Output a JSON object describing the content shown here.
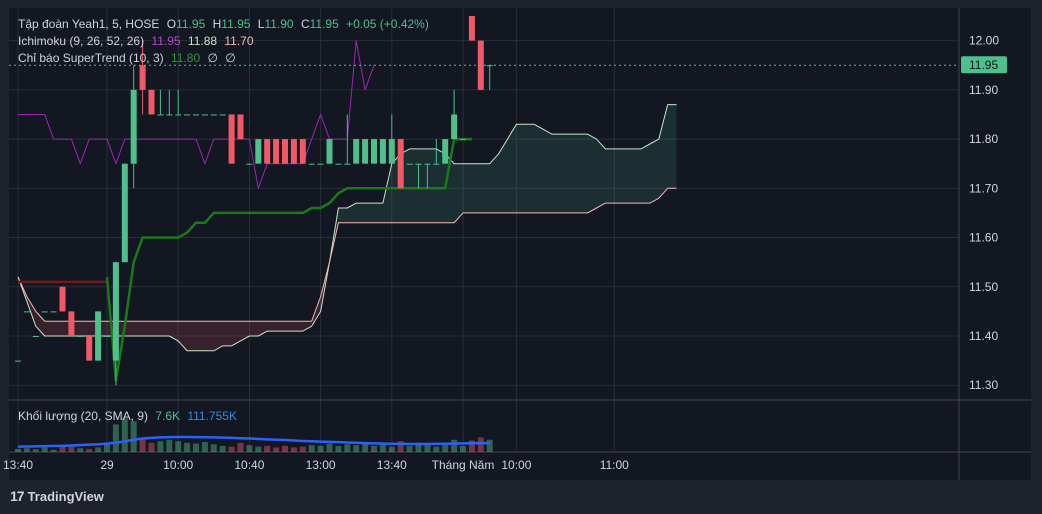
{
  "colors": {
    "up": "#4fbf8c",
    "down": "#f05a67",
    "conversion": "#9c27b0",
    "supertrend": "#1a7a1a",
    "supertrend_red": "#6d1b1b",
    "leadA": "#c7e6c7",
    "leadB": "#f4b8b8",
    "volume_ma": "#2962ff",
    "accent_price": "#4fbf8c",
    "text": "#d1d4dc",
    "axis_text": "#d1d4dc"
  },
  "legend": {
    "symbol": "Tập đoàn Yeah1, 5, HOSE",
    "o_label": "O",
    "o": "11.95",
    "h_label": "H",
    "h": "11.95",
    "l_label": "L",
    "l": "11.90",
    "c_label": "C",
    "c": "11.95",
    "change": "+0.05 (+0.42%)",
    "ichimoku_label": "Ichimoku (9, 26, 52, 26)",
    "ichimoku_v1": "11.95",
    "ichimoku_v2": "11.88",
    "ichimoku_v3": "11.70",
    "supertrend_label": "Chỉ báo SuperTrend (10, 3)",
    "supertrend_v1": "11.80",
    "supertrend_v2": "∅",
    "supertrend_v3": "∅",
    "volume_label": "Khối lượng (20, SMA, 9)",
    "volume_v1": "7.6K",
    "volume_v2": "111.755K"
  },
  "price_tag": "11.95",
  "brand": "TradingView",
  "chart_data": {
    "type": "candlestick",
    "title": "Tập đoàn Yeah1, 5, HOSE",
    "ylim": [
      11.27,
      12.05
    ],
    "y_ticks": [
      "11.30",
      "11.40",
      "11.50",
      "11.60",
      "11.70",
      "11.80",
      "11.90",
      "12.00"
    ],
    "x_tick_labels": [
      {
        "i": 0,
        "label": "13:40"
      },
      {
        "i": 10,
        "label": "29"
      },
      {
        "i": 18,
        "label": "10:00"
      },
      {
        "i": 26,
        "label": "10:40"
      },
      {
        "i": 34,
        "label": "13:00"
      },
      {
        "i": 42,
        "label": "13:40"
      },
      {
        "i": 50,
        "label": "Tháng Năm"
      },
      {
        "i": 56,
        "label": "10:00"
      },
      {
        "i": 67,
        "label": "11:00"
      }
    ],
    "candles": [
      {
        "o": 11.35,
        "h": 11.35,
        "l": 11.35,
        "c": 11.35
      },
      {
        "o": 11.45,
        "h": 11.45,
        "l": 11.45,
        "c": 11.45
      },
      {
        "o": 11.4,
        "h": 11.4,
        "l": 11.4,
        "c": 11.4
      },
      {
        "o": 11.45,
        "h": 11.45,
        "l": 11.45,
        "c": 11.45
      },
      {
        "o": 11.45,
        "h": 11.45,
        "l": 11.45,
        "c": 11.45
      },
      {
        "o": 11.5,
        "h": 11.5,
        "l": 11.45,
        "c": 11.45
      },
      {
        "o": 11.45,
        "h": 11.45,
        "l": 11.4,
        "c": 11.4
      },
      {
        "o": 11.4,
        "h": 11.4,
        "l": 11.4,
        "c": 11.4
      },
      {
        "o": 11.4,
        "h": 11.4,
        "l": 11.35,
        "c": 11.35
      },
      {
        "o": 11.35,
        "h": 11.45,
        "l": 11.35,
        "c": 11.45
      },
      {
        "o": 11.4,
        "h": 11.4,
        "l": 11.4,
        "c": 11.4
      },
      {
        "o": 11.35,
        "h": 11.55,
        "l": 11.3,
        "c": 11.55
      },
      {
        "o": 11.55,
        "h": 11.75,
        "l": 11.55,
        "c": 11.75
      },
      {
        "o": 11.75,
        "h": 11.95,
        "l": 11.7,
        "c": 11.9
      },
      {
        "o": 11.95,
        "h": 12.0,
        "l": 11.85,
        "c": 11.9
      },
      {
        "o": 11.9,
        "h": 11.9,
        "l": 11.85,
        "c": 11.85
      },
      {
        "o": 11.85,
        "h": 11.9,
        "l": 11.85,
        "c": 11.85
      },
      {
        "o": 11.85,
        "h": 11.9,
        "l": 11.85,
        "c": 11.85
      },
      {
        "o": 11.85,
        "h": 11.9,
        "l": 11.85,
        "c": 11.85
      },
      {
        "o": 11.85,
        "h": 11.85,
        "l": 11.85,
        "c": 11.85
      },
      {
        "o": 11.85,
        "h": 11.85,
        "l": 11.85,
        "c": 11.85
      },
      {
        "o": 11.85,
        "h": 11.85,
        "l": 11.85,
        "c": 11.85
      },
      {
        "o": 11.85,
        "h": 11.85,
        "l": 11.85,
        "c": 11.85
      },
      {
        "o": 11.85,
        "h": 11.85,
        "l": 11.85,
        "c": 11.85
      },
      {
        "o": 11.85,
        "h": 11.85,
        "l": 11.75,
        "c": 11.75
      },
      {
        "o": 11.85,
        "h": 11.85,
        "l": 11.8,
        "c": 11.8
      },
      {
        "o": 11.75,
        "h": 11.75,
        "l": 11.75,
        "c": 11.75
      },
      {
        "o": 11.75,
        "h": 11.8,
        "l": 11.75,
        "c": 11.8
      },
      {
        "o": 11.8,
        "h": 11.8,
        "l": 11.75,
        "c": 11.75
      },
      {
        "o": 11.8,
        "h": 11.8,
        "l": 11.75,
        "c": 11.75
      },
      {
        "o": 11.8,
        "h": 11.8,
        "l": 11.75,
        "c": 11.75
      },
      {
        "o": 11.8,
        "h": 11.8,
        "l": 11.75,
        "c": 11.75
      },
      {
        "o": 11.8,
        "h": 11.8,
        "l": 11.75,
        "c": 11.75
      },
      {
        "o": 11.75,
        "h": 11.75,
        "l": 11.75,
        "c": 11.75
      },
      {
        "o": 11.75,
        "h": 11.75,
        "l": 11.75,
        "c": 11.75
      },
      {
        "o": 11.75,
        "h": 11.8,
        "l": 11.75,
        "c": 11.8
      },
      {
        "o": 11.75,
        "h": 11.75,
        "l": 11.75,
        "c": 11.75
      },
      {
        "o": 11.75,
        "h": 11.85,
        "l": 11.75,
        "c": 11.75
      },
      {
        "o": 11.75,
        "h": 11.8,
        "l": 11.75,
        "c": 11.8
      },
      {
        "o": 11.75,
        "h": 11.8,
        "l": 11.75,
        "c": 11.8
      },
      {
        "o": 11.75,
        "h": 11.8,
        "l": 11.75,
        "c": 11.8
      },
      {
        "o": 11.75,
        "h": 11.8,
        "l": 11.75,
        "c": 11.8
      },
      {
        "o": 11.75,
        "h": 11.85,
        "l": 11.75,
        "c": 11.8
      },
      {
        "o": 11.8,
        "h": 11.8,
        "l": 11.7,
        "c": 11.7
      },
      {
        "o": 11.75,
        "h": 11.75,
        "l": 11.75,
        "c": 11.75
      },
      {
        "o": 11.75,
        "h": 11.75,
        "l": 11.7,
        "c": 11.75
      },
      {
        "o": 11.75,
        "h": 11.75,
        "l": 11.7,
        "c": 11.75
      },
      {
        "o": 11.75,
        "h": 11.8,
        "l": 11.75,
        "c": 11.75
      },
      {
        "o": 11.75,
        "h": 11.8,
        "l": 11.75,
        "c": 11.8
      },
      {
        "o": 11.8,
        "h": 11.9,
        "l": 11.8,
        "c": 11.85
      },
      {
        "o": 11.8,
        "h": 11.8,
        "l": 11.8,
        "c": 11.8
      },
      {
        "o": 12.05,
        "h": 12.05,
        "l": 12.0,
        "c": 12.0
      },
      {
        "o": 12.0,
        "h": 12.0,
        "l": 11.9,
        "c": 11.9
      },
      {
        "o": 11.95,
        "h": 11.95,
        "l": 11.9,
        "c": 11.95
      }
    ],
    "conversion_line": [
      11.85,
      11.85,
      11.85,
      11.85,
      11.8,
      11.8,
      11.8,
      11.75,
      11.8,
      11.8,
      11.8,
      11.75,
      11.8,
      11.8,
      11.8,
      11.8,
      11.8,
      11.8,
      11.8,
      11.8,
      11.8,
      11.75,
      11.8,
      11.8,
      11.8,
      11.8,
      11.8,
      11.7,
      11.75,
      11.75,
      11.75,
      11.75,
      11.75,
      11.8,
      11.85,
      11.8,
      11.8,
      11.8,
      12.0,
      11.9,
      11.95
    ],
    "conversion_start_index": 0,
    "supertrend_red": [
      11.51,
      11.51,
      11.51,
      11.51,
      11.51,
      11.51,
      11.51,
      11.51,
      11.51,
      11.51,
      11.51
    ],
    "supertrend_green": [
      [
        10,
        11.52
      ],
      [
        11,
        11.31
      ],
      [
        12,
        11.42
      ],
      [
        13,
        11.55
      ],
      [
        14,
        11.6
      ],
      [
        15,
        11.6
      ],
      [
        16,
        11.6
      ],
      [
        17,
        11.6
      ],
      [
        18,
        11.6
      ],
      [
        19,
        11.61
      ],
      [
        20,
        11.63
      ],
      [
        21,
        11.63
      ],
      [
        22,
        11.65
      ],
      [
        23,
        11.65
      ],
      [
        24,
        11.65
      ],
      [
        25,
        11.65
      ],
      [
        26,
        11.65
      ],
      [
        27,
        11.65
      ],
      [
        28,
        11.65
      ],
      [
        29,
        11.65
      ],
      [
        30,
        11.65
      ],
      [
        31,
        11.65
      ],
      [
        32,
        11.65
      ],
      [
        33,
        11.66
      ],
      [
        34,
        11.66
      ],
      [
        35,
        11.67
      ],
      [
        36,
        11.69
      ],
      [
        37,
        11.7
      ],
      [
        38,
        11.7
      ],
      [
        39,
        11.7
      ],
      [
        40,
        11.7
      ],
      [
        41,
        11.7
      ],
      [
        42,
        11.7
      ],
      [
        43,
        11.7
      ],
      [
        44,
        11.7
      ],
      [
        45,
        11.7
      ],
      [
        46,
        11.7
      ],
      [
        47,
        11.7
      ],
      [
        48,
        11.7
      ],
      [
        49,
        11.8
      ],
      [
        50,
        11.8
      ],
      [
        51,
        11.8
      ]
    ],
    "lead_a": [
      [
        0,
        11.52
      ],
      [
        1,
        11.47
      ],
      [
        2,
        11.42
      ],
      [
        3,
        11.4
      ],
      [
        4,
        11.4
      ],
      [
        5,
        11.4
      ],
      [
        6,
        11.4
      ],
      [
        7,
        11.4
      ],
      [
        8,
        11.4
      ],
      [
        9,
        11.4
      ],
      [
        10,
        11.4
      ],
      [
        11,
        11.4
      ],
      [
        12,
        11.4
      ],
      [
        13,
        11.4
      ],
      [
        14,
        11.4
      ],
      [
        15,
        11.4
      ],
      [
        16,
        11.4
      ],
      [
        17,
        11.4
      ],
      [
        18,
        11.39
      ],
      [
        19,
        11.37
      ],
      [
        20,
        11.37
      ],
      [
        21,
        11.37
      ],
      [
        22,
        11.37
      ],
      [
        23,
        11.38
      ],
      [
        24,
        11.38
      ],
      [
        25,
        11.39
      ],
      [
        26,
        11.4
      ],
      [
        27,
        11.4
      ],
      [
        28,
        11.41
      ],
      [
        29,
        11.41
      ],
      [
        30,
        11.41
      ],
      [
        31,
        11.41
      ],
      [
        32,
        11.41
      ],
      [
        33,
        11.42
      ],
      [
        34,
        11.45
      ],
      [
        35,
        11.55
      ],
      [
        36,
        11.66
      ],
      [
        37,
        11.66
      ],
      [
        38,
        11.67
      ],
      [
        39,
        11.67
      ],
      [
        40,
        11.67
      ],
      [
        41,
        11.67
      ],
      [
        42,
        11.75
      ],
      [
        43,
        11.77
      ],
      [
        44,
        11.78
      ],
      [
        45,
        11.78
      ],
      [
        46,
        11.78
      ],
      [
        47,
        11.78
      ],
      [
        48,
        11.77
      ],
      [
        49,
        11.75
      ],
      [
        50,
        11.75
      ],
      [
        51,
        11.75
      ],
      [
        52,
        11.75
      ],
      [
        53,
        11.75
      ],
      [
        54,
        11.77
      ],
      [
        55,
        11.8
      ],
      [
        56,
        11.83
      ],
      [
        57,
        11.83
      ],
      [
        58,
        11.83
      ],
      [
        59,
        11.82
      ],
      [
        60,
        11.81
      ],
      [
        61,
        11.81
      ],
      [
        62,
        11.81
      ],
      [
        63,
        11.81
      ],
      [
        64,
        11.81
      ],
      [
        65,
        11.8
      ],
      [
        66,
        11.78
      ],
      [
        67,
        11.78
      ],
      [
        68,
        11.78
      ],
      [
        69,
        11.78
      ],
      [
        70,
        11.78
      ],
      [
        71,
        11.79
      ],
      [
        72,
        11.8
      ],
      [
        73,
        11.87
      ],
      [
        74,
        11.87
      ]
    ],
    "lead_b": [
      [
        0,
        11.52
      ],
      [
        1,
        11.48
      ],
      [
        2,
        11.45
      ],
      [
        3,
        11.43
      ],
      [
        4,
        11.43
      ],
      [
        5,
        11.43
      ],
      [
        6,
        11.43
      ],
      [
        7,
        11.43
      ],
      [
        8,
        11.43
      ],
      [
        9,
        11.43
      ],
      [
        10,
        11.43
      ],
      [
        11,
        11.43
      ],
      [
        12,
        11.43
      ],
      [
        13,
        11.43
      ],
      [
        14,
        11.43
      ],
      [
        15,
        11.43
      ],
      [
        16,
        11.43
      ],
      [
        17,
        11.43
      ],
      [
        18,
        11.43
      ],
      [
        19,
        11.43
      ],
      [
        20,
        11.43
      ],
      [
        21,
        11.43
      ],
      [
        22,
        11.43
      ],
      [
        23,
        11.43
      ],
      [
        24,
        11.43
      ],
      [
        25,
        11.43
      ],
      [
        26,
        11.43
      ],
      [
        27,
        11.43
      ],
      [
        28,
        11.43
      ],
      [
        29,
        11.43
      ],
      [
        30,
        11.43
      ],
      [
        31,
        11.43
      ],
      [
        32,
        11.43
      ],
      [
        33,
        11.43
      ],
      [
        34,
        11.48
      ],
      [
        35,
        11.55
      ],
      [
        36,
        11.63
      ],
      [
        37,
        11.63
      ],
      [
        38,
        11.63
      ],
      [
        39,
        11.63
      ],
      [
        40,
        11.63
      ],
      [
        41,
        11.63
      ],
      [
        42,
        11.63
      ],
      [
        43,
        11.63
      ],
      [
        44,
        11.63
      ],
      [
        45,
        11.63
      ],
      [
        46,
        11.63
      ],
      [
        47,
        11.63
      ],
      [
        48,
        11.63
      ],
      [
        49,
        11.63
      ],
      [
        50,
        11.65
      ],
      [
        51,
        11.65
      ],
      [
        52,
        11.65
      ],
      [
        53,
        11.65
      ],
      [
        54,
        11.65
      ],
      [
        55,
        11.65
      ],
      [
        56,
        11.65
      ],
      [
        57,
        11.65
      ],
      [
        58,
        11.65
      ],
      [
        59,
        11.65
      ],
      [
        60,
        11.65
      ],
      [
        61,
        11.65
      ],
      [
        62,
        11.65
      ],
      [
        63,
        11.65
      ],
      [
        64,
        11.65
      ],
      [
        65,
        11.66
      ],
      [
        66,
        11.67
      ],
      [
        67,
        11.67
      ],
      [
        68,
        11.67
      ],
      [
        69,
        11.67
      ],
      [
        70,
        11.67
      ],
      [
        71,
        11.67
      ],
      [
        72,
        11.68
      ],
      [
        73,
        11.7
      ],
      [
        74,
        11.7
      ]
    ],
    "volume": {
      "ylim": [
        0,
        300
      ],
      "values": [
        20,
        25,
        18,
        30,
        15,
        40,
        35,
        25,
        20,
        30,
        60,
        180,
        220,
        200,
        90,
        60,
        70,
        80,
        70,
        60,
        55,
        65,
        50,
        40,
        35,
        60,
        45,
        35,
        40,
        30,
        40,
        30,
        35,
        45,
        40,
        55,
        40,
        50,
        45,
        60,
        40,
        50,
        35,
        70,
        40,
        60,
        55,
        35,
        45,
        80,
        40,
        75,
        95,
        80
      ],
      "ma_values": [
        35,
        36,
        37,
        38,
        39,
        40,
        42,
        45,
        48,
        50,
        55,
        60,
        70,
        80,
        88,
        92,
        95,
        97,
        98,
        98,
        97,
        96,
        95,
        94,
        92,
        90,
        88,
        85,
        82,
        80,
        78,
        75,
        72,
        70,
        68,
        66,
        64,
        62,
        60,
        58,
        56,
        55,
        54,
        53,
        52,
        52,
        52,
        53,
        54,
        55,
        56,
        57,
        58,
        58
      ]
    }
  }
}
